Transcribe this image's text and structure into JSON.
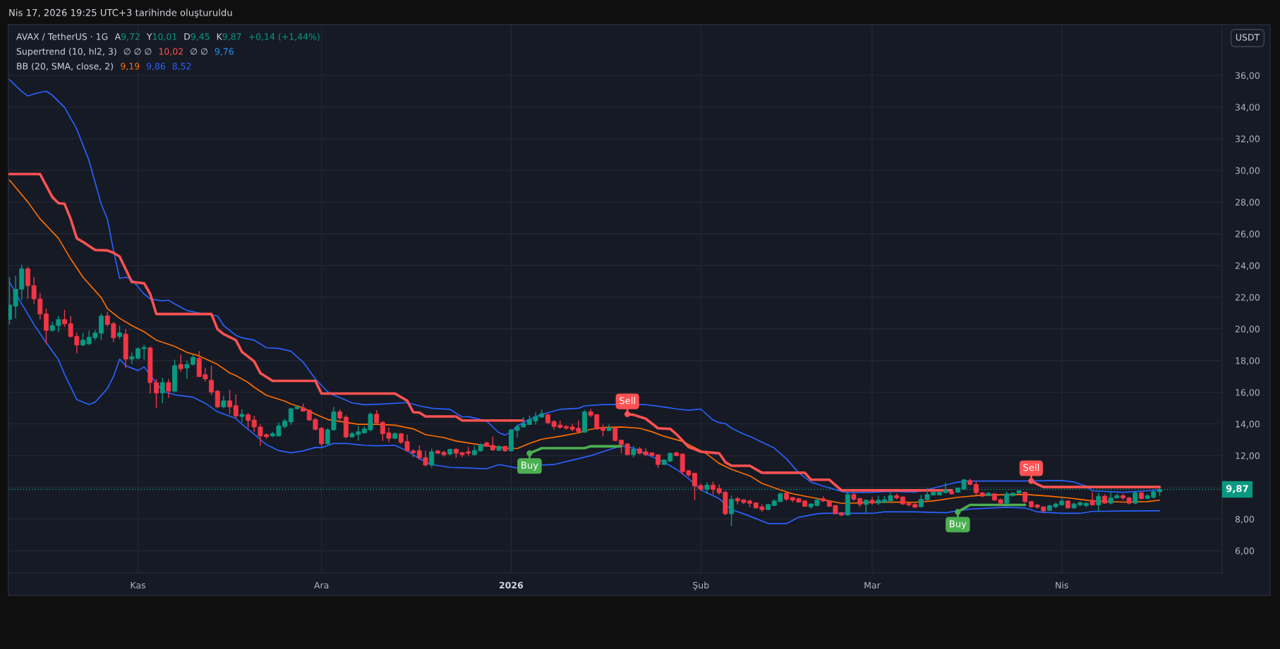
{
  "chart_data": {
    "type": "candlestick",
    "title": "AVAX / TetherUS · 1G",
    "annotations": [
      "Nis 17, 2026 19:25 UTC+3 tarihinde oluşturuldu",
      "A",
      "9,72",
      "Y",
      "10,01",
      "D",
      "9,45",
      "K",
      "9,87",
      "+0,14 (+1,44%)",
      "Supertrend (10, hl2, 3)",
      "∅ ∅ ∅",
      "10,02",
      "∅ ∅",
      "9,76",
      "BB (20, SMA, close, 2)",
      "9,19",
      "9,86",
      "8,52",
      {
        "text": "Buy",
        "x": "2026-01-04",
        "y": 12.15
      },
      {
        "text": "Sell",
        "x": "2026-01-20",
        "y": 14.62
      },
      {
        "text": "Buy",
        "x": "2026-03-15",
        "y": 8.45
      },
      {
        "text": "Sell",
        "x": "2026-03-27",
        "y": 10.4
      }
    ],
    "x": [
      "2025-10-11",
      "2025-10-12",
      "2025-10-13",
      "2025-10-14",
      "2025-10-15",
      "2025-10-16",
      "2025-10-17",
      "2025-10-18",
      "2025-10-19",
      "2025-10-20",
      "2025-10-21",
      "2025-10-22",
      "2025-10-23",
      "2025-10-24",
      "2025-10-25",
      "2025-10-26",
      "2025-10-27",
      "2025-10-28",
      "2025-10-29",
      "2025-10-30",
      "2025-10-31",
      "2025-11-01",
      "2025-11-02",
      "2025-11-03",
      "2025-11-04",
      "2025-11-05",
      "2025-11-06",
      "2025-11-07",
      "2025-11-08",
      "2025-11-09",
      "2025-11-10",
      "2025-11-11",
      "2025-11-12",
      "2025-11-13",
      "2025-11-14",
      "2025-11-15",
      "2025-11-16",
      "2025-11-17",
      "2025-11-18",
      "2025-11-19",
      "2025-11-20",
      "2025-11-21",
      "2025-11-22",
      "2025-11-23",
      "2025-11-24",
      "2025-11-25",
      "2025-11-26",
      "2025-11-27",
      "2025-11-28",
      "2025-11-29",
      "2025-11-30",
      "2025-12-01",
      "2025-12-02",
      "2025-12-03",
      "2025-12-04",
      "2025-12-05",
      "2025-12-06",
      "2025-12-07",
      "2025-12-08",
      "2025-12-09",
      "2025-12-10",
      "2025-12-11",
      "2025-12-12",
      "2025-12-13",
      "2025-12-14",
      "2025-12-15",
      "2025-12-16",
      "2025-12-17",
      "2025-12-18",
      "2025-12-19",
      "2025-12-20",
      "2025-12-21",
      "2025-12-22",
      "2025-12-23",
      "2025-12-24",
      "2025-12-25",
      "2025-12-26",
      "2025-12-27",
      "2025-12-28",
      "2025-12-29",
      "2025-12-30",
      "2025-12-31",
      "2026-01-01",
      "2026-01-02",
      "2026-01-03",
      "2026-01-04",
      "2026-01-05",
      "2026-01-06",
      "2026-01-07",
      "2026-01-08",
      "2026-01-09",
      "2026-01-10",
      "2026-01-11",
      "2026-01-12",
      "2026-01-13",
      "2026-01-14",
      "2026-01-15",
      "2026-01-16",
      "2026-01-17",
      "2026-01-18",
      "2026-01-19",
      "2026-01-20",
      "2026-01-21",
      "2026-01-22",
      "2026-01-23",
      "2026-01-24",
      "2026-01-25",
      "2026-01-26",
      "2026-01-27",
      "2026-01-28",
      "2026-01-29",
      "2026-01-30",
      "2026-01-31",
      "2026-02-01",
      "2026-02-02",
      "2026-02-03",
      "2026-02-04",
      "2026-02-05",
      "2026-02-06",
      "2026-02-07",
      "2026-02-08",
      "2026-02-09",
      "2026-02-10",
      "2026-02-11",
      "2026-02-12",
      "2026-02-13",
      "2026-02-14",
      "2026-02-15",
      "2026-02-16",
      "2026-02-17",
      "2026-02-18",
      "2026-02-19",
      "2026-02-20",
      "2026-02-21",
      "2026-02-22",
      "2026-02-23",
      "2026-02-24",
      "2026-02-25",
      "2026-02-26",
      "2026-02-27",
      "2026-02-28",
      "2026-03-01",
      "2026-03-02",
      "2026-03-03",
      "2026-03-04",
      "2026-03-05",
      "2026-03-06",
      "2026-03-07",
      "2026-03-08",
      "2026-03-09",
      "2026-03-10",
      "2026-03-11",
      "2026-03-12",
      "2026-03-13",
      "2026-03-14",
      "2026-03-15",
      "2026-03-16",
      "2026-03-17",
      "2026-03-18",
      "2026-03-19",
      "2026-03-20",
      "2026-03-21",
      "2026-03-22",
      "2026-03-23",
      "2026-03-24",
      "2026-03-25",
      "2026-03-26",
      "2026-03-27",
      "2026-03-28",
      "2026-03-29",
      "2026-03-30",
      "2026-03-31",
      "2026-04-01",
      "2026-04-02",
      "2026-04-03",
      "2026-04-04",
      "2026-04-05",
      "2026-04-06",
      "2026-04-07",
      "2026-04-08",
      "2026-04-09",
      "2026-04-10",
      "2026-04-11",
      "2026-04-12",
      "2026-04-13",
      "2026-04-14",
      "2026-04-15",
      "2026-04-16",
      "2026-04-17"
    ],
    "ohlc": [
      [
        20.59,
        23.27,
        20.28,
        21.51
      ],
      [
        21.43,
        23.34,
        20.67,
        22.5
      ],
      [
        22.5,
        24.06,
        21.81,
        23.8
      ],
      [
        23.8,
        23.91,
        21.89,
        22.73
      ],
      [
        22.73,
        23.27,
        21.58,
        21.89
      ],
      [
        21.89,
        22.27,
        20.59,
        20.94
      ],
      [
        20.94,
        21.28,
        19.03,
        19.9
      ],
      [
        19.9,
        20.44,
        19.83,
        20.21
      ],
      [
        20.21,
        20.82,
        19.79,
        20.59
      ],
      [
        20.59,
        21.2,
        20.13,
        20.33
      ],
      [
        20.33,
        20.82,
        19.44,
        19.52
      ],
      [
        19.52,
        19.75,
        18.45,
        18.98
      ],
      [
        18.98,
        19.75,
        18.91,
        19.29
      ],
      [
        19.06,
        19.9,
        18.98,
        19.47
      ],
      [
        19.44,
        19.93,
        19.29,
        19.75
      ],
      [
        19.72,
        20.97,
        19.29,
        20.82
      ],
      [
        20.82,
        21.09,
        20.13,
        20.28
      ],
      [
        20.33,
        20.44,
        19.17,
        19.44
      ],
      [
        19.52,
        20.21,
        19.36,
        19.75
      ],
      [
        19.67,
        19.98,
        17.53,
        18.09
      ],
      [
        18.09,
        18.52,
        17.76,
        18.25
      ],
      [
        18.14,
        18.83,
        18.06,
        18.75
      ],
      [
        18.75,
        19.0,
        18.06,
        18.83
      ],
      [
        18.8,
        18.9,
        15.92,
        16.61
      ],
      [
        16.61,
        16.84,
        15.0,
        15.95
      ],
      [
        15.95,
        16.92,
        15.31,
        16.61
      ],
      [
        16.61,
        16.84,
        15.64,
        16.07
      ],
      [
        16.07,
        18.06,
        16.0,
        17.68
      ],
      [
        17.76,
        18.37,
        17.3,
        17.48
      ],
      [
        17.53,
        17.99,
        16.84,
        17.76
      ],
      [
        17.76,
        18.37,
        17.68,
        18.21
      ],
      [
        18.14,
        18.6,
        16.96,
        16.99
      ],
      [
        17.11,
        17.53,
        16.69,
        16.84
      ],
      [
        16.76,
        17.68,
        15.84,
        16.0
      ],
      [
        16.07,
        16.15,
        15.0,
        15.08
      ],
      [
        15.08,
        15.77,
        15.0,
        15.46
      ],
      [
        15.46,
        16.15,
        14.62,
        15.08
      ],
      [
        15.16,
        15.86,
        14.31,
        14.5
      ],
      [
        14.47,
        14.92,
        14.1,
        14.61
      ],
      [
        14.58,
        14.7,
        13.73,
        14.22
      ],
      [
        14.25,
        14.52,
        13.51,
        13.81
      ],
      [
        13.81,
        13.98,
        12.62,
        13.24
      ],
      [
        13.33,
        13.39,
        13.07,
        13.19
      ],
      [
        13.24,
        13.51,
        13.18,
        13.39
      ],
      [
        13.24,
        14.1,
        13.21,
        13.88
      ],
      [
        13.84,
        14.33,
        13.73,
        14.18
      ],
      [
        14.13,
        15.02,
        13.95,
        14.96
      ],
      [
        14.96,
        15.14,
        14.92,
        15.07
      ],
      [
        15.02,
        15.29,
        14.77,
        14.81
      ],
      [
        14.87,
        14.92,
        14.18,
        14.25
      ],
      [
        14.28,
        14.37,
        13.6,
        13.66
      ],
      [
        13.73,
        13.81,
        12.55,
        12.74
      ],
      [
        12.74,
        13.73,
        12.7,
        13.63
      ],
      [
        13.63,
        15.07,
        13.58,
        14.77
      ],
      [
        14.77,
        14.92,
        14.22,
        14.37
      ],
      [
        14.43,
        14.55,
        13.09,
        13.18
      ],
      [
        13.18,
        13.51,
        13.14,
        13.39
      ],
      [
        13.33,
        13.88,
        12.95,
        13.51
      ],
      [
        13.44,
        13.84,
        13.39,
        13.69
      ],
      [
        13.63,
        14.72,
        13.54,
        14.62
      ],
      [
        14.62,
        14.87,
        14.03,
        14.07
      ],
      [
        14.1,
        14.18,
        12.92,
        13.39
      ],
      [
        13.44,
        13.78,
        12.84,
        13.09
      ],
      [
        13.09,
        13.48,
        13.06,
        13.39
      ],
      [
        13.39,
        13.42,
        12.74,
        12.84
      ],
      [
        12.89,
        13.33,
        12.25,
        12.3
      ],
      [
        12.3,
        12.4,
        11.91,
        12.18
      ],
      [
        12.32,
        12.65,
        11.73,
        11.85
      ],
      [
        11.88,
        12.32,
        11.32,
        11.41
      ],
      [
        11.41,
        12.44,
        11.26,
        12.25
      ],
      [
        12.3,
        12.35,
        12.1,
        12.15
      ],
      [
        12.21,
        12.3,
        11.95,
        12.06
      ],
      [
        12.1,
        12.44,
        12.03,
        12.4
      ],
      [
        12.4,
        12.47,
        11.85,
        12.15
      ],
      [
        12.18,
        12.25,
        11.91,
        12.06
      ],
      [
        12.25,
        12.55,
        11.96,
        12.15
      ],
      [
        12.06,
        12.62,
        12.03,
        12.33
      ],
      [
        12.3,
        12.77,
        12.25,
        12.7
      ],
      [
        12.8,
        12.89,
        12.55,
        12.59
      ],
      [
        12.65,
        13.21,
        12.3,
        12.36
      ],
      [
        12.33,
        12.65,
        12.3,
        12.59
      ],
      [
        12.59,
        12.62,
        12.25,
        12.3
      ],
      [
        12.3,
        13.69,
        12.25,
        13.63
      ],
      [
        13.59,
        13.96,
        13.14,
        13.84
      ],
      [
        13.81,
        14.43,
        13.78,
        14.03
      ],
      [
        13.96,
        14.52,
        13.93,
        14.28
      ],
      [
        14.18,
        14.73,
        13.96,
        14.47
      ],
      [
        14.43,
        14.92,
        14.4,
        14.65
      ],
      [
        14.59,
        14.65,
        13.99,
        14.07
      ],
      [
        14.15,
        14.25,
        13.63,
        13.84
      ],
      [
        13.93,
        14.22,
        13.69,
        13.78
      ],
      [
        13.84,
        13.93,
        13.63,
        13.73
      ],
      [
        13.81,
        13.99,
        13.54,
        13.66
      ],
      [
        13.73,
        14.22,
        13.44,
        13.51
      ],
      [
        13.48,
        14.87,
        13.44,
        14.77
      ],
      [
        14.77,
        14.95,
        14.43,
        14.55
      ],
      [
        14.59,
        14.62,
        13.63,
        13.69
      ],
      [
        13.78,
        13.96,
        13.21,
        13.59
      ],
      [
        13.59,
        13.96,
        13.54,
        13.78
      ],
      [
        13.75,
        13.78,
        12.92,
        12.95
      ],
      [
        12.98,
        13.01,
        12.15,
        12.7
      ],
      [
        12.74,
        12.77,
        12.03,
        12.06
      ],
      [
        12.06,
        12.62,
        11.88,
        12.4
      ],
      [
        12.43,
        12.55,
        12.06,
        12.15
      ],
      [
        12.25,
        12.47,
        11.96,
        12.06
      ],
      [
        12.18,
        12.21,
        11.96,
        12.0
      ],
      [
        12.06,
        12.08,
        11.22,
        11.44
      ],
      [
        11.44,
        11.76,
        11.41,
        11.73
      ],
      [
        11.66,
        12.21,
        11.61,
        12.15
      ],
      [
        12.18,
        12.25,
        11.96,
        12.0
      ],
      [
        12.1,
        12.15,
        10.82,
        10.99
      ],
      [
        11.05,
        11.1,
        10.67,
        10.78
      ],
      [
        10.89,
        10.92,
        9.19,
        10.08
      ],
      [
        10.11,
        10.25,
        9.78,
        9.88
      ],
      [
        9.88,
        10.33,
        9.59,
        10.14
      ],
      [
        10.14,
        10.37,
        9.54,
        9.88
      ],
      [
        9.93,
        10.18,
        9.54,
        9.66
      ],
      [
        9.69,
        9.78,
        8.25,
        8.33
      ],
      [
        8.33,
        9.48,
        7.56,
        9.25
      ],
      [
        9.29,
        9.39,
        8.92,
        9.14
      ],
      [
        9.22,
        9.25,
        8.95,
        9.04
      ],
      [
        9.14,
        9.22,
        8.74,
        8.99
      ],
      [
        9.02,
        9.07,
        8.65,
        8.7
      ],
      [
        8.77,
        8.92,
        8.45,
        8.59
      ],
      [
        8.59,
        8.95,
        8.56,
        8.92
      ],
      [
        8.85,
        9.25,
        8.8,
        9.14
      ],
      [
        9.1,
        9.69,
        9.07,
        9.59
      ],
      [
        9.63,
        9.69,
        9.14,
        9.25
      ],
      [
        9.36,
        9.39,
        9.07,
        9.19
      ],
      [
        9.29,
        9.33,
        9.04,
        9.07
      ],
      [
        9.14,
        9.19,
        8.77,
        8.8
      ],
      [
        8.77,
        8.99,
        8.65,
        8.95
      ],
      [
        8.85,
        9.33,
        8.8,
        9.19
      ],
      [
        9.29,
        9.44,
        9.07,
        9.14
      ],
      [
        9.14,
        9.19,
        8.77,
        8.8
      ],
      [
        8.85,
        8.89,
        8.3,
        8.33
      ],
      [
        8.4,
        8.45,
        8.18,
        8.25
      ],
      [
        8.25,
        9.78,
        8.21,
        9.54
      ],
      [
        9.54,
        9.66,
        9.14,
        9.25
      ],
      [
        9.29,
        9.36,
        8.77,
        8.92
      ],
      [
        8.92,
        9.25,
        8.4,
        9.19
      ],
      [
        9.19,
        9.39,
        8.89,
        9.0
      ],
      [
        9.0,
        9.48,
        8.89,
        9.19
      ],
      [
        9.07,
        9.44,
        8.99,
        9.22
      ],
      [
        9.14,
        9.69,
        9.07,
        9.48
      ],
      [
        9.48,
        9.59,
        9.25,
        9.33
      ],
      [
        9.39,
        9.44,
        8.89,
        8.95
      ],
      [
        8.99,
        9.07,
        8.8,
        8.89
      ],
      [
        8.92,
        9.0,
        8.7,
        8.74
      ],
      [
        8.77,
        9.52,
        8.74,
        9.25
      ],
      [
        9.22,
        9.96,
        9.19,
        9.55
      ],
      [
        9.51,
        9.78,
        9.48,
        9.69
      ],
      [
        9.51,
        9.81,
        9.48,
        9.69
      ],
      [
        9.66,
        10.29,
        9.63,
        9.84
      ],
      [
        9.74,
        9.81,
        9.55,
        9.59
      ],
      [
        9.69,
        9.99,
        9.66,
        9.96
      ],
      [
        9.89,
        10.52,
        9.84,
        10.48
      ],
      [
        10.43,
        10.55,
        10.14,
        10.18
      ],
      [
        10.18,
        10.37,
        9.52,
        9.66
      ],
      [
        9.66,
        9.69,
        9.4,
        9.44
      ],
      [
        9.48,
        9.69,
        9.44,
        9.63
      ],
      [
        9.59,
        9.63,
        9.14,
        9.19
      ],
      [
        9.22,
        9.29,
        8.89,
        9.0
      ],
      [
        9.0,
        9.74,
        8.95,
        9.59
      ],
      [
        9.48,
        9.66,
        9.4,
        9.63
      ],
      [
        9.63,
        9.81,
        9.59,
        9.78
      ],
      [
        9.69,
        9.74,
        9.0,
        9.1
      ],
      [
        9.1,
        9.14,
        8.7,
        8.77
      ],
      [
        8.89,
        8.95,
        8.65,
        8.74
      ],
      [
        8.77,
        8.8,
        8.36,
        8.51
      ],
      [
        8.55,
        8.89,
        8.51,
        8.85
      ],
      [
        8.77,
        9.04,
        8.7,
        8.95
      ],
      [
        8.89,
        9.44,
        8.85,
        9.14
      ],
      [
        9.14,
        9.19,
        8.65,
        8.7
      ],
      [
        8.7,
        9.04,
        8.65,
        8.95
      ],
      [
        8.89,
        9.1,
        8.8,
        9.04
      ],
      [
        8.85,
        9.04,
        8.74,
        9.0
      ],
      [
        9.19,
        9.69,
        8.85,
        8.89
      ],
      [
        8.89,
        9.66,
        8.48,
        9.44
      ],
      [
        9.44,
        9.55,
        8.95,
        9.0
      ],
      [
        9.0,
        9.69,
        8.92,
        9.33
      ],
      [
        9.33,
        9.59,
        9.29,
        9.48
      ],
      [
        9.48,
        9.59,
        9.19,
        9.33
      ],
      [
        9.33,
        9.4,
        8.92,
        9.0
      ],
      [
        9.0,
        9.74,
        8.95,
        9.66
      ],
      [
        9.66,
        9.69,
        9.22,
        9.29
      ],
      [
        9.29,
        9.55,
        9.25,
        9.48
      ],
      [
        9.37,
        9.81,
        9.29,
        9.73
      ],
      [
        9.72,
        10.01,
        9.45,
        9.87
      ]
    ],
    "colors": [
      "#089981",
      "#089981",
      "#089981",
      "#f23645",
      "#f23645",
      "#f23645",
      "#f23645",
      "#089981",
      "#089981",
      "#f23645",
      "#f23645",
      "#f23645",
      "#089981",
      "#089981",
      "#089981",
      "#089981",
      "#f23645",
      "#f23645",
      "#089981",
      "#f23645",
      "#089981",
      "#089981",
      "#089981",
      "#f23645",
      "#f23645",
      "#089981",
      "#f23645",
      "#089981",
      "#f23645",
      "#089981",
      "#089981",
      "#f23645",
      "#f23645",
      "#f23645",
      "#f23645",
      "#089981",
      "#f23645",
      "#f23645",
      "#089981",
      "#f23645",
      "#f23645",
      "#f23645",
      "#f23645",
      "#089981",
      "#089981",
      "#089981",
      "#089981",
      "#089981",
      "#f23645",
      "#f23645",
      "#f23645",
      "#f23645",
      "#089981",
      "#089981",
      "#f23645",
      "#f23645",
      "#089981",
      "#089981",
      "#089981",
      "#089981",
      "#f23645",
      "#f23645",
      "#f23645",
      "#089981",
      "#f23645",
      "#f23645",
      "#f23645",
      "#f23645",
      "#f23645",
      "#089981",
      "#f23645",
      "#f23645",
      "#089981",
      "#f23645",
      "#f23645",
      "#f23645",
      "#089981",
      "#089981",
      "#f23645",
      "#f23645",
      "#089981",
      "#f23645",
      "#089981",
      "#089981",
      "#089981",
      "#089981",
      "#089981",
      "#089981",
      "#f23645",
      "#f23645",
      "#f23645",
      "#f23645",
      "#f23645",
      "#f23645",
      "#089981",
      "#f23645",
      "#f23645",
      "#f23645",
      "#089981",
      "#f23645",
      "#f23645",
      "#f23645",
      "#089981",
      "#f23645",
      "#f23645",
      "#f23645",
      "#f23645",
      "#089981",
      "#089981",
      "#f23645",
      "#f23645",
      "#f23645",
      "#f23645",
      "#f23645",
      "#089981",
      "#f23645",
      "#f23645",
      "#f23645",
      "#089981",
      "#f23645",
      "#f23645",
      "#f23645",
      "#f23645",
      "#f23645",
      "#089981",
      "#089981",
      "#089981",
      "#f23645",
      "#f23645",
      "#f23645",
      "#f23645",
      "#089981",
      "#089981",
      "#f23645",
      "#f23645",
      "#f23645",
      "#f23645",
      "#089981",
      "#f23645",
      "#f23645",
      "#089981",
      "#f23645",
      "#089981",
      "#089981",
      "#089981",
      "#f23645",
      "#f23645",
      "#f23645",
      "#f23645",
      "#089981",
      "#089981",
      "#089981",
      "#089981",
      "#089981",
      "#f23645",
      "#089981",
      "#089981",
      "#f23645",
      "#f23645",
      "#f23645",
      "#089981",
      "#f23645",
      "#f23645",
      "#089981",
      "#089981",
      "#089981",
      "#f23645",
      "#f23645",
      "#f23645",
      "#f23645",
      "#089981",
      "#089981",
      "#089981",
      "#f23645",
      "#089981",
      "#089981",
      "#089981",
      "#f23645",
      "#089981",
      "#f23645",
      "#089981",
      "#089981",
      "#f23645",
      "#f23645",
      "#089981",
      "#f23645",
      "#089981",
      "#089981",
      "#089981"
    ],
    "series": [
      {
        "type": "line",
        "color": "#2962ff",
        "x": [
          "2025-10-11",
          "2025-10-13",
          "2025-10-14",
          "2025-10-15",
          "2025-10-17",
          "2025-10-18",
          "2025-10-20",
          "2025-10-22",
          "2025-10-24",
          "2025-10-26",
          "2025-10-27",
          "2025-10-28",
          "2025-10-29",
          "2025-10-30",
          "2025-10-31",
          "2025-11-02",
          "2025-11-03",
          "2025-11-05",
          "2025-11-06",
          "2025-11-07",
          "2025-11-09",
          "2025-11-11",
          "2025-11-14",
          "2025-11-15",
          "2025-11-17",
          "2025-11-18",
          "2025-11-20",
          "2025-11-22",
          "2025-11-24",
          "2025-11-26",
          "2025-11-28",
          "2025-11-30",
          "2025-12-02",
          "2025-12-03",
          "2025-12-04",
          "2025-12-06",
          "2025-12-08",
          "2025-12-11",
          "2025-12-15",
          "2025-12-17",
          "2025-12-19",
          "2025-12-22",
          "2025-12-24",
          "2025-12-25",
          "2025-12-28",
          "2025-12-30",
          "2025-12-31",
          "2026-01-01",
          "2026-01-02",
          "2026-01-04",
          "2026-01-06",
          "2026-01-09",
          "2026-01-12",
          "2026-01-13",
          "2026-01-16",
          "2026-01-23",
          "2026-01-26",
          "2026-01-28",
          "2026-01-30",
          "2026-02-01",
          "2026-02-03",
          "2026-02-04",
          "2026-02-05",
          "2026-02-06",
          "2026-02-08",
          "2026-02-09",
          "2026-02-11",
          "2026-02-13",
          "2026-02-15",
          "2026-02-17",
          "2026-02-19",
          "2026-02-21",
          "2026-02-24",
          "2026-02-25",
          "2026-03-01",
          "2026-03-04",
          "2026-03-08",
          "2026-03-11",
          "2026-03-13",
          "2026-03-15",
          "2026-03-17",
          "2026-03-26",
          "2026-04-01",
          "2026-04-03",
          "2026-04-05",
          "2026-04-06",
          "2026-04-11",
          "2026-04-15",
          "2026-04-17"
        ],
        "values": [
          35.74,
          34.98,
          34.7,
          34.83,
          35.01,
          34.75,
          33.98,
          32.61,
          30.62,
          27.86,
          26.94,
          24.95,
          23.19,
          23.27,
          23.11,
          22.2,
          21.89,
          21.77,
          21.81,
          21.58,
          21.16,
          21.0,
          20.82,
          20.21,
          19.59,
          19.44,
          19.29,
          18.81,
          18.77,
          18.59,
          17.9,
          16.84,
          16.03,
          15.81,
          15.66,
          15.33,
          15.21,
          15.26,
          15.35,
          15.14,
          14.99,
          14.92,
          14.44,
          14.47,
          14.18,
          13.45,
          13.3,
          13.5,
          13.88,
          14.28,
          14.62,
          14.92,
          14.99,
          15.14,
          15.22,
          15.22,
          15.07,
          14.95,
          14.87,
          14.94,
          14.25,
          14.08,
          14.03,
          13.74,
          13.36,
          13.22,
          12.85,
          12.48,
          11.8,
          10.92,
          10.33,
          10.08,
          9.74,
          9.66,
          9.69,
          9.74,
          9.7,
          9.95,
          10.15,
          10.33,
          10.4,
          10.4,
          10.43,
          10.33,
          10.08,
          9.78,
          9.69,
          9.78,
          9.86
        ]
      },
      {
        "type": "line",
        "color": "#ff6d00",
        "x": [
          "2025-10-11",
          "2025-10-14",
          "2025-10-16",
          "2025-10-19",
          "2025-10-21",
          "2025-10-23",
          "2025-10-26",
          "2025-10-27",
          "2025-10-29",
          "2025-10-31",
          "2025-11-02",
          "2025-11-04",
          "2025-11-07",
          "2025-11-09",
          "2025-11-11",
          "2025-11-14",
          "2025-11-16",
          "2025-11-17",
          "2025-11-19",
          "2025-11-20",
          "2025-11-22",
          "2025-11-25",
          "2025-11-26",
          "2025-11-28",
          "2025-11-30",
          "2025-12-02",
          "2025-12-05",
          "2025-12-07",
          "2025-12-10",
          "2025-12-13",
          "2025-12-16",
          "2025-12-18",
          "2025-12-21",
          "2025-12-23",
          "2025-12-25",
          "2025-12-28",
          "2025-12-31",
          "2026-01-02",
          "2026-01-04",
          "2026-01-06",
          "2026-01-09",
          "2026-01-12",
          "2026-01-14",
          "2026-01-16",
          "2026-01-19",
          "2026-01-22",
          "2026-01-24",
          "2026-01-26",
          "2026-01-29",
          "2026-01-31",
          "2026-02-02",
          "2026-02-04",
          "2026-02-06",
          "2026-02-09",
          "2026-02-11",
          "2026-02-14",
          "2026-02-16",
          "2026-02-19",
          "2026-02-21",
          "2026-02-24",
          "2026-02-25",
          "2026-02-28",
          "2026-03-03",
          "2026-03-08",
          "2026-03-11",
          "2026-03-15",
          "2026-03-19",
          "2026-03-26",
          "2026-03-30",
          "2026-04-03",
          "2026-04-06",
          "2026-04-11",
          "2026-04-15",
          "2026-04-17"
        ],
        "values": [
          29.39,
          28.01,
          26.94,
          25.72,
          24.42,
          23.27,
          21.97,
          21.28,
          20.67,
          20.21,
          19.82,
          19.29,
          18.9,
          18.52,
          18.29,
          17.76,
          17.22,
          17.05,
          16.62,
          16.32,
          15.81,
          15.44,
          15.26,
          15.02,
          14.62,
          14.28,
          14.1,
          13.98,
          13.98,
          13.92,
          13.69,
          13.33,
          13.14,
          12.92,
          12.8,
          12.62,
          12.47,
          12.45,
          12.77,
          13.04,
          13.22,
          13.44,
          13.66,
          13.78,
          13.81,
          13.73,
          13.51,
          13.22,
          12.9,
          12.5,
          12.1,
          11.51,
          11.14,
          10.73,
          10.25,
          9.84,
          9.59,
          9.37,
          9.22,
          8.99,
          8.99,
          9.04,
          9.07,
          9.06,
          9.14,
          9.37,
          9.51,
          9.55,
          9.44,
          9.29,
          9.14,
          9.07,
          9.1,
          9.19
        ]
      },
      {
        "type": "line",
        "color": "#2962ff",
        "x": [
          "2025-10-11",
          "2025-10-13",
          "2025-10-15",
          "2025-10-17",
          "2025-10-19",
          "2025-10-20",
          "2025-10-22",
          "2025-10-24",
          "2025-10-25",
          "2025-10-27",
          "2025-10-28",
          "2025-10-29",
          "2025-10-30",
          "2025-11-01",
          "2025-11-02",
          "2025-11-05",
          "2025-11-07",
          "2025-11-10",
          "2025-11-12",
          "2025-11-14",
          "2025-11-17",
          "2025-11-18",
          "2025-11-20",
          "2025-11-22",
          "2025-11-24",
          "2025-11-26",
          "2025-11-28",
          "2025-11-30",
          "2025-12-01",
          "2025-12-03",
          "2025-12-05",
          "2025-12-08",
          "2025-12-10",
          "2025-12-13",
          "2025-12-15",
          "2025-12-17",
          "2025-12-19",
          "2025-12-22",
          "2025-12-25",
          "2025-12-28",
          "2025-12-30",
          "2026-01-02",
          "2026-01-04",
          "2026-01-08",
          "2026-01-12",
          "2026-01-14",
          "2026-01-16",
          "2026-01-19",
          "2026-01-21",
          "2026-01-23",
          "2026-01-26",
          "2026-01-28",
          "2026-01-30",
          "2026-02-01",
          "2026-02-02",
          "2026-02-04",
          "2026-02-06",
          "2026-02-08",
          "2026-02-10",
          "2026-02-12",
          "2026-02-15",
          "2026-02-17",
          "2026-02-20",
          "2026-02-21",
          "2026-02-25",
          "2026-03-01",
          "2026-03-03",
          "2026-03-08",
          "2026-03-13",
          "2026-03-17",
          "2026-03-23",
          "2026-03-26",
          "2026-03-28",
          "2026-04-01",
          "2026-04-04",
          "2026-04-06",
          "2026-04-11",
          "2026-04-17"
        ],
        "values": [
          22.96,
          21.58,
          20.28,
          19.13,
          18.06,
          17.14,
          15.54,
          15.23,
          15.38,
          16.23,
          16.99,
          18.09,
          17.68,
          17.37,
          17.6,
          16.07,
          15.84,
          15.69,
          15.31,
          14.77,
          14.35,
          13.98,
          13.36,
          12.69,
          12.32,
          12.18,
          12.3,
          12.52,
          12.5,
          12.77,
          12.77,
          12.65,
          12.62,
          12.65,
          12.3,
          11.81,
          11.44,
          11.26,
          11.22,
          11.17,
          11.44,
          11.22,
          11.36,
          11.44,
          11.81,
          12.0,
          12.25,
          12.62,
          12.47,
          12.1,
          11.59,
          11.14,
          10.55,
          9.84,
          9.66,
          9.29,
          8.59,
          8.33,
          8.03,
          7.71,
          7.71,
          8.11,
          8.33,
          8.36,
          8.36,
          8.36,
          8.45,
          8.45,
          8.4,
          8.63,
          8.74,
          8.7,
          8.45,
          8.36,
          8.36,
          8.48,
          8.51,
          8.52
        ]
      },
      {
        "type": "line",
        "color": "#ff5252",
        "x": [
          "2025-10-11",
          "2025-10-16",
          "2025-10-18",
          "2025-10-19",
          "2025-10-20",
          "2025-10-21",
          "2025-10-22",
          "2025-10-23",
          "2025-10-25",
          "2025-10-27",
          "2025-10-28",
          "2025-10-29",
          "2025-10-31",
          "2025-11-02",
          "2025-11-03",
          "2025-11-04",
          "2025-11-13",
          "2025-11-14",
          "2025-11-15",
          "2025-11-17",
          "2025-11-18",
          "2025-11-20",
          "2025-11-21",
          "2025-11-23",
          "2025-11-30",
          "2025-12-01",
          "2025-12-13",
          "2025-12-15",
          "2025-12-16",
          "2025-12-17",
          "2025-12-18",
          "2025-12-23",
          "2025-12-24",
          "2026-01-03",
          "2026-01-04",
          "2026-01-20",
          "2026-01-21",
          "2026-01-23",
          "2026-01-25",
          "2026-01-27",
          "2026-01-28",
          "2026-01-30",
          "2026-01-31",
          "2026-02-01",
          "2026-02-04",
          "2026-02-05",
          "2026-02-06",
          "2026-02-09",
          "2026-02-11",
          "2026-02-18",
          "2026-02-19",
          "2026-02-22",
          "2026-02-24",
          "2026-03-14",
          "2026-03-15",
          "2026-03-27",
          "2026-03-28",
          "2026-03-29",
          "2026-04-17"
        ],
        "values": [
          29.77,
          29.77,
          28.32,
          27.94,
          27.89,
          26.94,
          25.72,
          25.49,
          24.98,
          24.95,
          24.8,
          24.57,
          22.96,
          22.88,
          22.2,
          20.94,
          20.94,
          19.98,
          19.67,
          19.29,
          18.55,
          17.95,
          17.21,
          16.72,
          16.72,
          15.92,
          15.92,
          15.47,
          14.74,
          14.72,
          14.47,
          14.47,
          14.22,
          14.22,
          null,
          14.62,
          14.58,
          14.33,
          13.73,
          13.69,
          13.36,
          12.55,
          12.4,
          12.25,
          12.15,
          11.59,
          11.36,
          11.36,
          10.92,
          10.92,
          10.48,
          10.48,
          9.81,
          9.81,
          null,
          10.4,
          10.2,
          10.02,
          10.02
        ]
      },
      {
        "type": "line",
        "color": "#4caf50",
        "x": [
          "2026-01-04",
          "2026-01-06",
          "2026-01-13",
          "2026-01-14",
          "2026-01-19",
          "2026-01-20",
          "2026-03-15",
          "2026-03-17",
          "2026-03-26"
        ],
        "values": [
          12.15,
          12.47,
          12.47,
          12.59,
          12.59,
          null,
          8.45,
          8.89,
          8.89
        ]
      }
    ],
    "xlim": [
      "2025-10-10T20:00",
      "2026-04-27T05:00"
    ],
    "ylim": [
      4.6,
      39.2
    ],
    "xticks": [
      {
        "value": "2025-11-01",
        "label": "Kas"
      },
      {
        "value": "2025-12-01",
        "label": "Ara"
      },
      {
        "value": "2026-01-01",
        "label": "2026"
      },
      {
        "value": "2026-02-01",
        "label": "Şub"
      },
      {
        "value": "2026-03-01",
        "label": "Mar"
      },
      {
        "value": "2026-04-01",
        "label": "Nis"
      }
    ],
    "yticks": [
      {
        "value": 6,
        "label": "6,00"
      },
      {
        "value": 8,
        "label": "8,00"
      },
      {
        "value": 10,
        "label": null
      },
      {
        "value": 12,
        "label": "12,00"
      },
      {
        "value": 14,
        "label": "14,00"
      },
      {
        "value": 16,
        "label": "16,00"
      },
      {
        "value": 18,
        "label": "18,00"
      },
      {
        "value": 20,
        "label": "20,00"
      },
      {
        "value": 22,
        "label": "22,00"
      },
      {
        "value": 24,
        "label": "24,00"
      },
      {
        "value": 26,
        "label": "26,00"
      },
      {
        "value": 28,
        "label": "28,00"
      },
      {
        "value": 30,
        "label": "30,00"
      },
      {
        "value": 32,
        "label": "32,00"
      },
      {
        "value": 34,
        "label": "34,00"
      },
      {
        "value": 36,
        "label": "36,00"
      }
    ],
    "grid": true,
    "ylabel": "USDT",
    "ref_lines": [
      {
        "axis": "y",
        "value": 9.87,
        "label": "9,87",
        "color": "#089981",
        "line_style": "dotted"
      }
    ]
  }
}
